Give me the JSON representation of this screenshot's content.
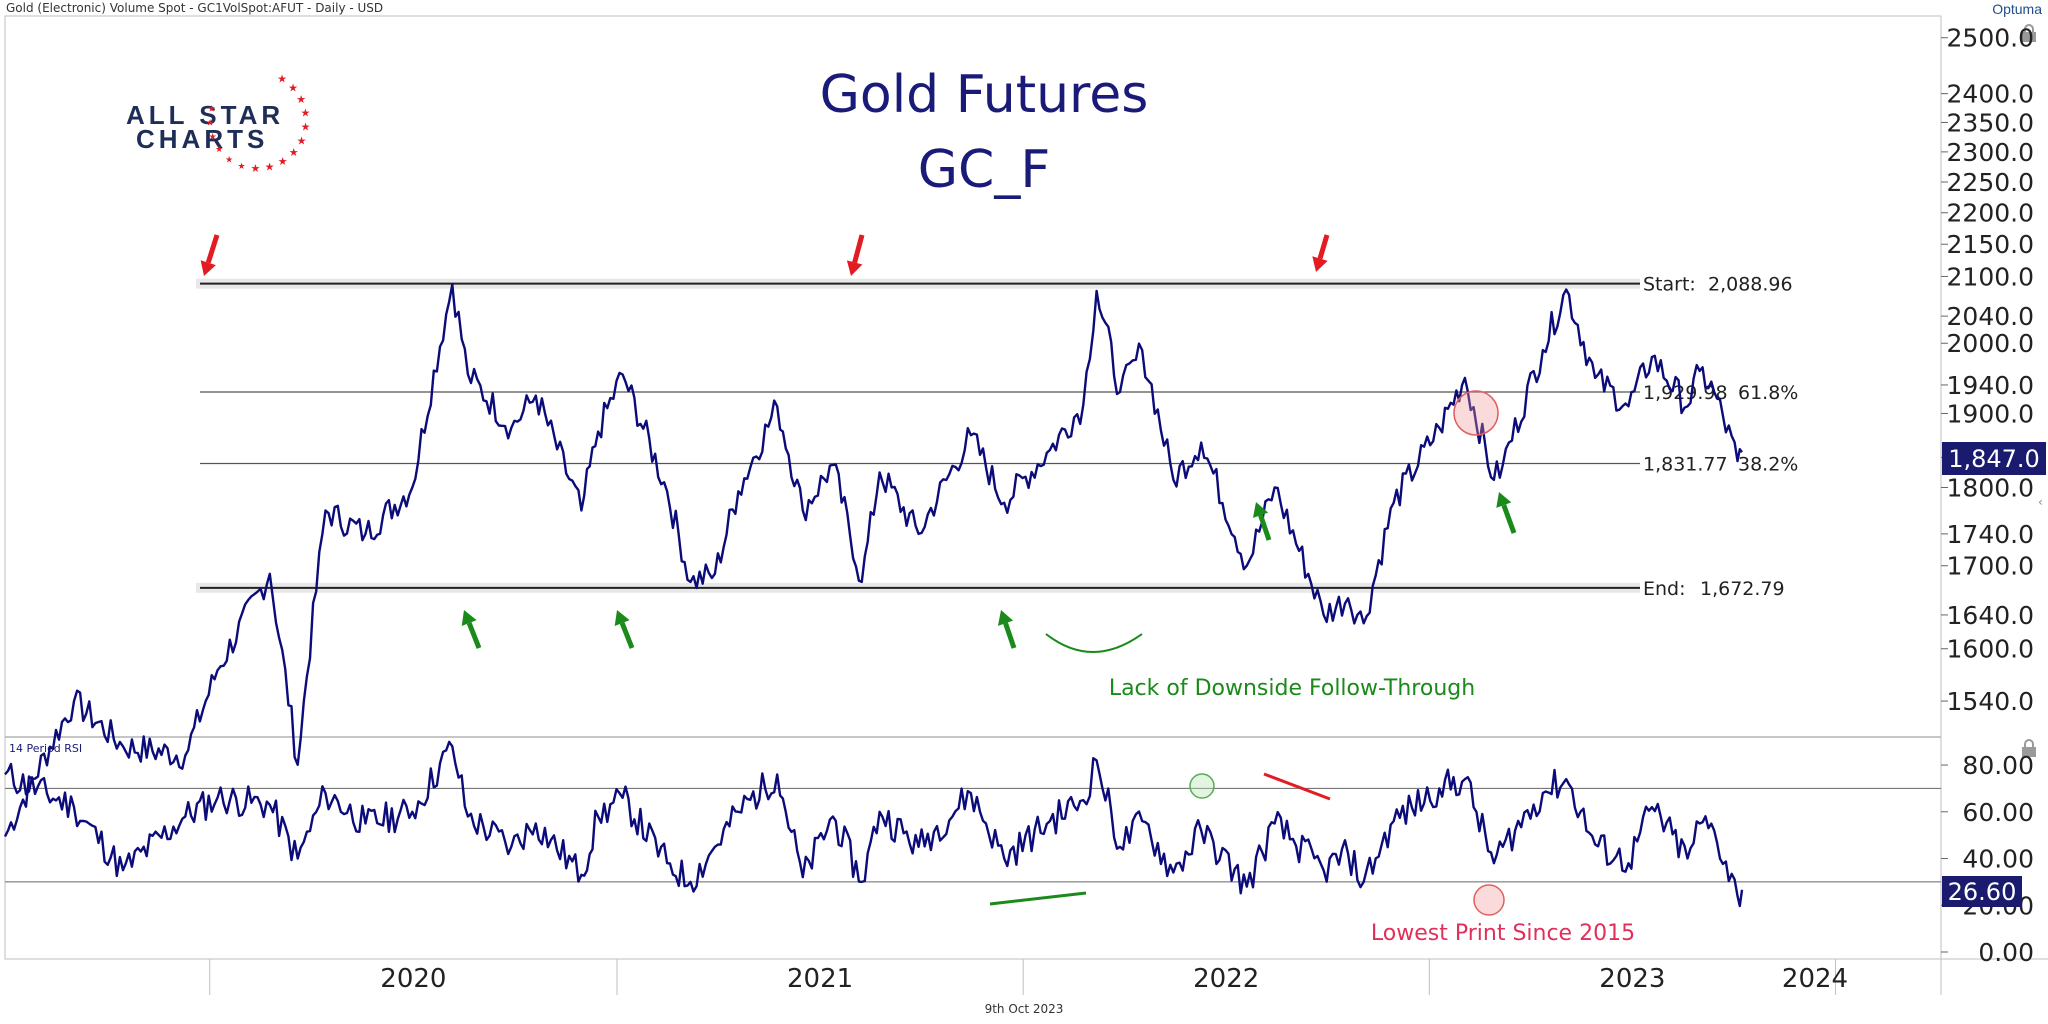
{
  "header": {
    "instrument": "Gold (Electronic) Volume Spot - GC1VolSpot:AFUT - Daily - USD",
    "brand": "Optuma"
  },
  "footer": {
    "date": "9th Oct 2023"
  },
  "logo": {
    "line1": "ALL STAR",
    "line2": "CHARTS"
  },
  "colors": {
    "price": "#0b0b7a",
    "red": "#e31b23",
    "green": "#1a8a1a",
    "navy": "#1a1a6e",
    "pink": "#e0305a"
  },
  "chart_data": [
    {
      "type": "line",
      "title": "Gold Futures",
      "subtitle": "GC_F",
      "x": [
        "2019-07-01",
        "2019-09-01",
        "2019-10-15",
        "2019-12-10",
        "2020-01-08",
        "2020-02-24",
        "2020-03-20",
        "2020-04-14",
        "2020-05-20",
        "2020-07-01",
        "2020-08-06",
        "2020-08-20",
        "2020-09-28",
        "2020-10-20",
        "2020-11-30",
        "2020-12-15",
        "2021-01-06",
        "2021-02-15",
        "2021-03-08",
        "2021-03-30",
        "2021-04-20",
        "2021-05-25",
        "2021-06-17",
        "2021-07-14",
        "2021-08-09",
        "2021-08-25",
        "2021-09-29",
        "2021-11-15",
        "2021-12-15",
        "2022-01-25",
        "2022-02-24",
        "2022-03-08",
        "2022-03-29",
        "2022-04-18",
        "2022-05-16",
        "2022-06-10",
        "2022-07-21",
        "2022-08-15",
        "2022-09-28",
        "2022-10-20",
        "2022-11-03",
        "2022-11-30",
        "2023-01-10",
        "2023-02-02",
        "2023-02-28",
        "2023-03-08",
        "2023-04-13",
        "2023-05-04",
        "2023-05-30",
        "2023-06-29",
        "2023-07-20",
        "2023-08-21",
        "2023-09-01",
        "2023-09-14",
        "2023-10-05",
        "2023-10-09"
      ],
      "values": [
        1395,
        1540,
        1490,
        1480,
        1575,
        1690,
        1470,
        1770,
        1740,
        1800,
        2088,
        1955,
        1880,
        1925,
        1770,
        1875,
        1955,
        1795,
        1680,
        1690,
        1795,
        1910,
        1770,
        1830,
        1680,
        1820,
        1740,
        1870,
        1780,
        1850,
        1912,
        2078,
        1930,
        1990,
        1810,
        1860,
        1700,
        1800,
        1640,
        1660,
        1630,
        1780,
        1880,
        1950,
        1810,
        1830,
        1990,
        2080,
        1950,
        1910,
        1980,
        1910,
        1960,
        1930,
        1835,
        1847
      ],
      "ylim": [
        1510,
        2540
      ],
      "yticks": [
        "1540.0",
        "1600.0",
        "1640.0",
        "1700.0",
        "1740.0",
        "1800.0",
        "1840.0",
        "1900.0",
        "1940.0",
        "2000.0",
        "2040.0",
        "2100.0",
        "2150.0",
        "2200.0",
        "2250.0",
        "2300.0",
        "2350.0",
        "2400.0",
        "2500.0"
      ],
      "xticks": [
        "2020",
        "2021",
        "2022",
        "2023",
        "2024"
      ],
      "last_value": "1,847.0",
      "fib_levels": [
        {
          "label": "Start:",
          "value": "2,088.96",
          "pct": "",
          "y": 2088.96
        },
        {
          "label": "",
          "value": "1,929.98",
          "pct": "61.8%",
          "y": 1929.98
        },
        {
          "label": "",
          "value": "1,831.77",
          "pct": "38.2%",
          "y": 1831.77
        },
        {
          "label": "End:",
          "value": "1,672.79",
          "pct": "",
          "y": 1672.79
        }
      ],
      "annotations": [
        "Lack of Downside Follow-Through"
      ]
    },
    {
      "type": "line",
      "title": "14 Period RSI",
      "x": [
        "2019-07-01",
        "2019-09-01",
        "2019-10-15",
        "2019-12-10",
        "2020-01-08",
        "2020-02-24",
        "2020-03-20",
        "2020-04-14",
        "2020-05-20",
        "2020-07-01",
        "2020-08-06",
        "2020-08-20",
        "2020-09-28",
        "2020-10-20",
        "2020-11-30",
        "2020-12-15",
        "2021-01-06",
        "2021-02-15",
        "2021-03-08",
        "2021-03-30",
        "2021-04-20",
        "2021-05-25",
        "2021-06-17",
        "2021-07-14",
        "2021-08-09",
        "2021-08-25",
        "2021-09-29",
        "2021-11-15",
        "2021-12-15",
        "2022-01-25",
        "2022-02-24",
        "2022-03-08",
        "2022-03-29",
        "2022-04-18",
        "2022-05-16",
        "2022-06-10",
        "2022-07-21",
        "2022-08-15",
        "2022-09-28",
        "2022-10-20",
        "2022-11-03",
        "2022-11-30",
        "2023-01-10",
        "2023-02-02",
        "2023-02-28",
        "2023-03-08",
        "2023-04-13",
        "2023-05-04",
        "2023-05-30",
        "2023-06-29",
        "2023-07-20",
        "2023-08-21",
        "2023-09-01",
        "2023-09-14",
        "2023-10-05",
        "2023-10-09"
      ],
      "values": [
        76,
        62,
        35,
        58,
        66,
        63,
        40,
        68,
        55,
        60,
        88,
        58,
        45,
        55,
        33,
        58,
        66,
        38,
        30,
        45,
        60,
        76,
        32,
        58,
        30,
        60,
        45,
        68,
        40,
        56,
        65,
        82,
        45,
        56,
        34,
        52,
        28,
        55,
        35,
        42,
        30,
        56,
        70,
        74,
        38,
        45,
        68,
        74,
        46,
        38,
        62,
        40,
        55,
        52,
        24,
        26.6
      ],
      "ylim": [
        0,
        92
      ],
      "yticks": [
        "0.00",
        "20.00",
        "40.00",
        "60.00",
        "80.00"
      ],
      "last_value": "26.60",
      "annotations": [
        "Lowest Print Since 2015"
      ]
    }
  ]
}
